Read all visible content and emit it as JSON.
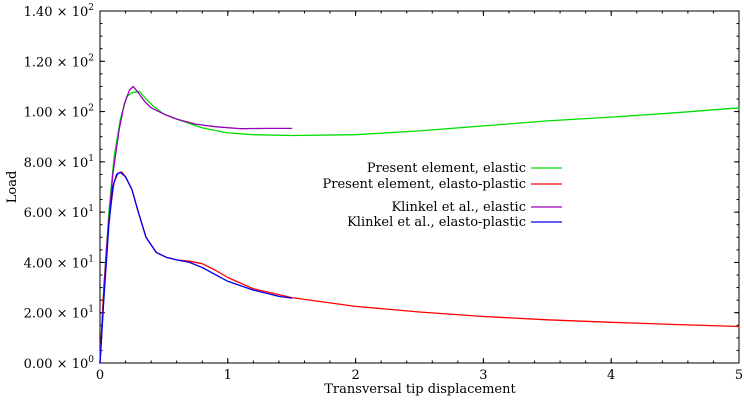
{
  "chart_data": {
    "type": "line",
    "title": "",
    "xlabel": "Transversal tip displacement",
    "ylabel": "Load",
    "xlim": [
      0,
      5
    ],
    "ylim": [
      0,
      140
    ],
    "grid": false,
    "legend_position": "center-right",
    "x_ticks": [
      {
        "value": 0,
        "label": "0"
      },
      {
        "value": 1,
        "label": "1"
      },
      {
        "value": 2,
        "label": "2"
      },
      {
        "value": 3,
        "label": "3"
      },
      {
        "value": 4,
        "label": "4"
      },
      {
        "value": 5,
        "label": "5"
      }
    ],
    "y_ticks": [
      {
        "value": 0,
        "mantissa": "0.00 × 10",
        "exp": "0"
      },
      {
        "value": 20,
        "mantissa": "2.00 × 10",
        "exp": "1"
      },
      {
        "value": 40,
        "mantissa": "4.00 × 10",
        "exp": "1"
      },
      {
        "value": 60,
        "mantissa": "6.00 × 10",
        "exp": "1"
      },
      {
        "value": 80,
        "mantissa": "8.00 × 10",
        "exp": "1"
      },
      {
        "value": 100,
        "mantissa": "1.00 × 10",
        "exp": "2"
      },
      {
        "value": 120,
        "mantissa": "1.20 × 10",
        "exp": "2"
      },
      {
        "value": 140,
        "mantissa": "1.40 × 10",
        "exp": "2"
      }
    ],
    "series": [
      {
        "name": "Present element, elastic",
        "color": "#00dd00",
        "x": [
          0,
          0.03,
          0.07,
          0.11,
          0.16,
          0.21,
          0.25,
          0.31,
          0.36,
          0.42,
          0.5,
          0.6,
          0.8,
          1.0,
          1.2,
          1.5,
          2.0,
          2.5,
          3.0,
          3.5,
          4.0,
          4.5,
          5.0
        ],
        "y": [
          0,
          30,
          60,
          82,
          97,
          106,
          107.5,
          108,
          105,
          102,
          99,
          97,
          93.5,
          91.5,
          90.8,
          90.5,
          90.8,
          92.3,
          94.3,
          96.3,
          97.8,
          99.5,
          101.5
        ]
      },
      {
        "name": "Present element, elasto-plastic",
        "color": "#ff0000",
        "x": [
          0,
          0.03,
          0.07,
          0.11,
          0.14,
          0.17,
          0.2,
          0.25,
          0.3,
          0.36,
          0.44,
          0.52,
          0.6,
          0.7,
          0.8,
          0.9,
          1.0,
          1.2,
          1.5,
          2.0,
          2.5,
          3.0,
          3.5,
          4.0,
          4.5,
          5.0
        ],
        "y": [
          0,
          30,
          57,
          72,
          75.5,
          76,
          74,
          69,
          60,
          50,
          44,
          42,
          41,
          40.5,
          39.5,
          37,
          34,
          29.5,
          26,
          22.5,
          20.3,
          18.5,
          17.2,
          16.2,
          15.3,
          14.5
        ]
      },
      {
        "name": "Klinkel et al., elastic",
        "color": "#9900bb",
        "x": [
          0,
          0.05,
          0.1,
          0.15,
          0.19,
          0.23,
          0.26,
          0.3,
          0.35,
          0.4,
          0.5,
          0.6,
          0.75,
          0.9,
          1.1,
          1.3,
          1.5
        ],
        "y": [
          0,
          45,
          75,
          93,
          103,
          108.5,
          110,
          107.5,
          104,
          101.5,
          99,
          97,
          95,
          94,
          93.2,
          93.3,
          93.3
        ]
      },
      {
        "name": "Klinkel et al., elasto-plastic",
        "color": "#0000ee",
        "x": [
          0,
          0.03,
          0.07,
          0.1,
          0.13,
          0.16,
          0.2,
          0.25,
          0.3,
          0.36,
          0.44,
          0.52,
          0.6,
          0.7,
          0.8,
          1.0,
          1.2,
          1.4,
          1.5
        ],
        "y": [
          0,
          25,
          55,
          70,
          75,
          75.8,
          74,
          69,
          60,
          50,
          44,
          42,
          41,
          40,
          38,
          32.5,
          29,
          26.5,
          25.8
        ]
      }
    ]
  }
}
